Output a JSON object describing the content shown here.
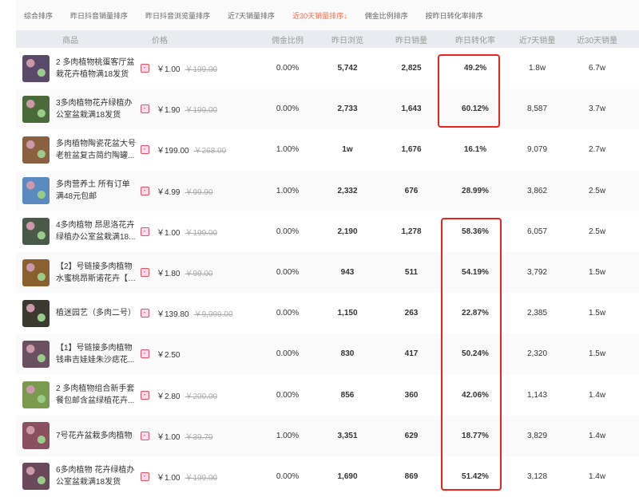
{
  "sort_tabs": [
    {
      "label": "综合排序"
    },
    {
      "label": "昨日抖音销量排序"
    },
    {
      "label": "昨日抖音浏览量排序"
    },
    {
      "label": "近7天销量排序"
    },
    {
      "label": "近30天销量排序↓",
      "active": true
    },
    {
      "label": "佣金比例排序"
    },
    {
      "label": "按昨日转化率排序"
    }
  ],
  "headers": {
    "product": "商品",
    "price": "价格",
    "commission": "佣金比例",
    "views": "昨日浏览",
    "sales": "昨日销量",
    "conversion": "昨日转化率",
    "sales7": "近7天销量",
    "sales30": "近30天销量"
  },
  "accent_color": "#f46a4a",
  "highlight_color": "#e8221c",
  "rows": [
    {
      "name": "2 多肉植物桃蛋客厅盆栽花卉植物满18发货",
      "price": "￥1.00",
      "old": "￥199.00",
      "commission": "0.00%",
      "views": "5,742",
      "sales": "2,825",
      "conversion": "49.2%",
      "sales7": "1.8w",
      "sales30": "6.7w",
      "thumb": "#5a4a6a"
    },
    {
      "name": "3多肉植物花卉绿植办公室盆栽满18发货",
      "price": "￥1.90",
      "old": "￥199.00",
      "commission": "0.00%",
      "views": "2,733",
      "sales": "1,643",
      "conversion": "60.12%",
      "sales7": "8,587",
      "sales30": "3.7w",
      "thumb": "#4a6a3a"
    },
    {
      "name": "多肉植物陶瓷花盆大号老桩盆复古简约陶罐...",
      "price": "￥199.00",
      "old": "￥268.00",
      "commission": "1.00%",
      "views": "1w",
      "sales": "1,676",
      "conversion": "16.1%",
      "sales7": "9,079",
      "sales30": "2.7w",
      "thumb": "#8a6040"
    },
    {
      "name": "多肉营养土 所有订单满48元包邮",
      "price": "￥4.99",
      "old": "￥99.90",
      "commission": "1.00%",
      "views": "2,332",
      "sales": "676",
      "conversion": "28.99%",
      "sales7": "3,862",
      "sales30": "2.5w",
      "thumb": "#5a8ac0"
    },
    {
      "name": "4多肉植物 昂思洛花卉绿植办公室盆栽满18...",
      "price": "￥1.00",
      "old": "￥199.00",
      "commission": "0.00%",
      "views": "2,190",
      "sales": "1,278",
      "conversion": "58.36%",
      "sales7": "6,057",
      "sales30": "2.5w",
      "thumb": "#4a5a4a"
    },
    {
      "name": "【2】号链接多肉植物水蜜桃昂斯诺花卉【 ...",
      "price": "￥1.80",
      "old": "￥99.00",
      "commission": "0.00%",
      "views": "943",
      "sales": "511",
      "conversion": "54.19%",
      "sales7": "3,792",
      "sales30": "1.5w",
      "thumb": "#8a6030"
    },
    {
      "name": "植迷园艺（多肉二号）",
      "price": "￥139.80",
      "old": "￥9,999.00",
      "commission": "0.00%",
      "views": "1,150",
      "sales": "263",
      "conversion": "22.87%",
      "sales7": "2,385",
      "sales30": "1.5w",
      "thumb": "#3a3a30"
    },
    {
      "name": "【1】号链接多肉植物钱串吉娃娃朱沙痣花...",
      "price": "￥2.50",
      "old": "",
      "commission": "0.00%",
      "views": "830",
      "sales": "417",
      "conversion": "50.24%",
      "sales7": "2,320",
      "sales30": "1.5w",
      "thumb": "#6a5060"
    },
    {
      "name": "2 多肉植物组合新手套餐包邮含盆绿植花卉...",
      "price": "￥2.80",
      "old": "￥200.00",
      "commission": "0.00%",
      "views": "856",
      "sales": "360",
      "conversion": "42.06%",
      "sales7": "1,143",
      "sales30": "1.4w",
      "thumb": "#7a9a50"
    },
    {
      "name": "7号花卉盆栽多肉植物",
      "price": "￥1.00",
      "old": "￥39.79",
      "commission": "1.00%",
      "views": "3,351",
      "sales": "629",
      "conversion": "18.77%",
      "sales7": "3,829",
      "sales30": "1.4w",
      "thumb": "#8a5060"
    },
    {
      "name": "6多肉植物 花卉绿植办公室盆栽满18发货",
      "price": "￥1.00",
      "old": "￥199.00",
      "commission": "0.00%",
      "views": "1,690",
      "sales": "869",
      "conversion": "51.42%",
      "sales7": "3,128",
      "sales30": "1.4w",
      "thumb": "#6a4a5a"
    }
  ]
}
